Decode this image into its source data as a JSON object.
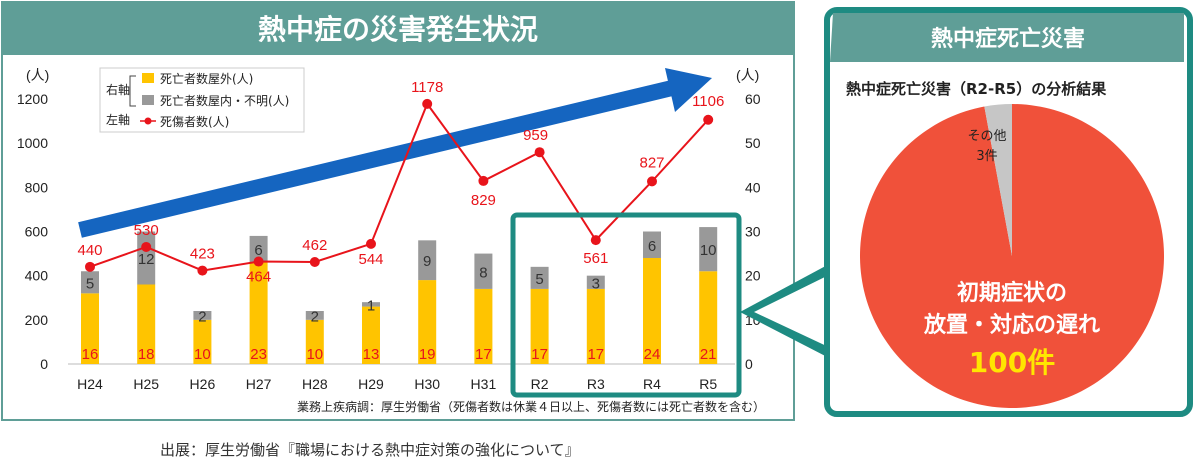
{
  "left_panel": {
    "title": "熱中症の災害発生状況"
  },
  "right_panel": {
    "title": "熱中症死亡災害",
    "subtitle": "熱中症死亡災害（R2-R5）の分析結果"
  },
  "legend": {
    "right_axis_label": "右軸",
    "left_axis_label": "左軸",
    "items": [
      "死亡者数屋外(人)",
      "死亡者数屋内・不明(人)",
      "死傷者数(人)"
    ]
  },
  "axis_unit_left": "(人)",
  "axis_unit_right": "(人)",
  "note": "業務上疾病調：厚生労働省（死傷者数は休業４日以上、死傷者数には死亡者数を含む）",
  "source": "出展：厚生労働省『職場における熱中症対策の強化について』",
  "colors": {
    "teal": "#1e8b82",
    "teal_header": "#5f9e97",
    "outdoor": "#ffc400",
    "indoor": "#999999",
    "line": "#e8141b",
    "arrow": "#1565c0",
    "pie_main": "#f0513a",
    "pie_other": "#c6c6c6"
  },
  "chart_data": [
    {
      "type": "bar",
      "stacked": true,
      "categories": [
        "H24",
        "H25",
        "H26",
        "H27",
        "H28",
        "H29",
        "H30",
        "H31",
        "R2",
        "R3",
        "R4",
        "R5"
      ],
      "series": [
        {
          "name": "死亡者数屋外(人)",
          "axis": "right",
          "values": [
            16,
            18,
            10,
            23,
            10,
            13,
            19,
            17,
            17,
            17,
            24,
            21
          ]
        },
        {
          "name": "死亡者数屋内・不明(人)",
          "axis": "right",
          "values": [
            5,
            12,
            2,
            6,
            2,
            1,
            9,
            8,
            5,
            3,
            6,
            10
          ]
        },
        {
          "name": "死傷者数(人)",
          "axis": "left",
          "type": "line",
          "values": [
            440,
            530,
            423,
            464,
            462,
            544,
            1178,
            829,
            959,
            561,
            827,
            1106
          ]
        }
      ],
      "y_left": {
        "range": [
          0,
          1200
        ],
        "ticks": [
          0,
          200,
          400,
          600,
          800,
          1000,
          1200
        ]
      },
      "y_right": {
        "range": [
          0,
          60
        ],
        "ticks": [
          0,
          10,
          20,
          30,
          40,
          50,
          60
        ]
      },
      "highlight": [
        "R2",
        "R3",
        "R4",
        "R5"
      ],
      "legend_position": "top-left"
    },
    {
      "type": "pie",
      "slices": [
        {
          "label": "初期症状の放置・対応の遅れ",
          "value": 100,
          "value_label": "100件"
        },
        {
          "label": "その他",
          "value": 3,
          "value_label": "3件"
        }
      ]
    }
  ]
}
